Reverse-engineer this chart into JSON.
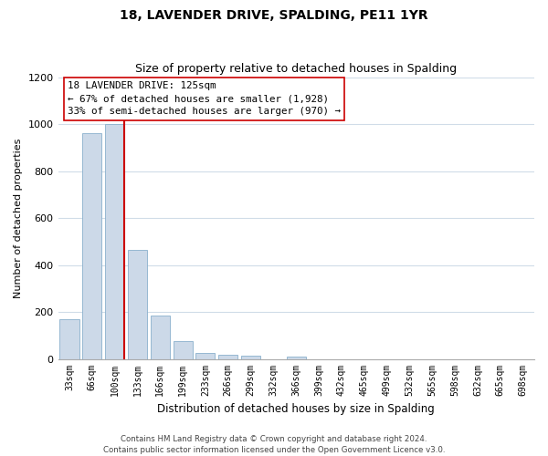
{
  "title": "18, LAVENDER DRIVE, SPALDING, PE11 1YR",
  "subtitle": "Size of property relative to detached houses in Spalding",
  "xlabel": "Distribution of detached houses by size in Spalding",
  "ylabel": "Number of detached properties",
  "bar_labels": [
    "33sqm",
    "66sqm",
    "100sqm",
    "133sqm",
    "166sqm",
    "199sqm",
    "233sqm",
    "266sqm",
    "299sqm",
    "332sqm",
    "366sqm",
    "399sqm",
    "432sqm",
    "465sqm",
    "499sqm",
    "532sqm",
    "565sqm",
    "598sqm",
    "632sqm",
    "665sqm",
    "698sqm"
  ],
  "bar_values": [
    170,
    960,
    1000,
    465,
    185,
    75,
    25,
    18,
    12,
    0,
    10,
    0,
    0,
    0,
    0,
    0,
    0,
    0,
    0,
    0,
    0
  ],
  "bar_color": "#ccd9e8",
  "bar_edge_color": "#8ab0cc",
  "vline_color": "#cc0000",
  "ylim": [
    0,
    1200
  ],
  "yticks": [
    0,
    200,
    400,
    600,
    800,
    1000,
    1200
  ],
  "annotation_title": "18 LAVENDER DRIVE: 125sqm",
  "annotation_line1": "← 67% of detached houses are smaller (1,928)",
  "annotation_line2": "33% of semi-detached houses are larger (970) →",
  "annotation_box_edge": "#cc0000",
  "footer_line1": "Contains HM Land Registry data © Crown copyright and database right 2024.",
  "footer_line2": "Contains public sector information licensed under the Open Government Licence v3.0.",
  "background_color": "#ffffff",
  "grid_color": "#d0dce8"
}
